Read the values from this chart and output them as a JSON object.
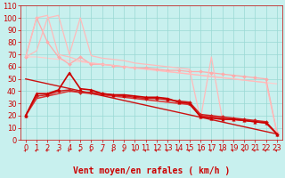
{
  "xlabel": "Vent moyen/en rafales ( km/h )",
  "xlim": [
    -0.5,
    23.5
  ],
  "ylim": [
    0,
    110
  ],
  "yticks": [
    0,
    10,
    20,
    30,
    40,
    50,
    60,
    70,
    80,
    90,
    100,
    110
  ],
  "xticks": [
    0,
    1,
    2,
    3,
    4,
    5,
    6,
    7,
    8,
    9,
    10,
    11,
    12,
    13,
    14,
    15,
    16,
    17,
    18,
    19,
    20,
    21,
    22,
    23
  ],
  "bg_color": "#c8f0ee",
  "grid_color": "#99d8d4",
  "lines": [
    {
      "x": [
        0,
        1,
        2,
        3,
        4,
        5,
        6,
        7,
        8,
        9,
        10,
        11,
        12,
        13,
        14,
        15,
        16,
        17,
        18,
        19,
        20,
        21,
        22,
        23
      ],
      "y": [
        68,
        100,
        80,
        68,
        62,
        68,
        62,
        62,
        61,
        60,
        59,
        59,
        58,
        57,
        57,
        56,
        56,
        55,
        54,
        53,
        52,
        51,
        50,
        6
      ],
      "color": "#ffaaaa",
      "lw": 0.9,
      "marker": "D",
      "ms": 2.0,
      "zorder": 2
    },
    {
      "x": [
        0,
        1,
        2,
        3,
        4,
        5,
        6,
        7,
        8,
        9,
        10,
        11,
        12,
        13,
        14,
        15,
        16,
        17,
        18,
        19,
        20,
        21,
        22,
        23
      ],
      "y": [
        68,
        100,
        102,
        70,
        68,
        65,
        63,
        62,
        61,
        60,
        59,
        58,
        57,
        56,
        55,
        54,
        53,
        52,
        51,
        50,
        49,
        48,
        47,
        6
      ],
      "color": "#ffbbbb",
      "lw": 0.9,
      "marker": null,
      "ms": 0,
      "zorder": 2
    },
    {
      "x": [
        0,
        1,
        2,
        3,
        4,
        5,
        6,
        7,
        8,
        9,
        10,
        11,
        12,
        13,
        14,
        15,
        16,
        17,
        18,
        19,
        20,
        21,
        22,
        23
      ],
      "y": [
        68,
        73,
        100,
        102,
        70,
        100,
        69,
        67,
        66,
        65,
        63,
        62,
        61,
        60,
        59,
        58,
        17,
        68,
        17,
        16,
        16,
        15,
        14,
        6
      ],
      "color": "#ffbbbb",
      "lw": 0.9,
      "marker": null,
      "ms": 0,
      "zorder": 2
    },
    {
      "x": [
        0,
        1,
        2,
        3,
        4,
        5,
        6,
        7,
        8,
        9,
        10,
        11,
        12,
        13,
        14,
        15,
        16,
        17,
        18,
        19,
        20,
        21,
        22,
        23
      ],
      "y": [
        68,
        68,
        67,
        66,
        65,
        64,
        63,
        62,
        61,
        60,
        59,
        58,
        57,
        56,
        55,
        54,
        53,
        52,
        51,
        50,
        49,
        48,
        47,
        46
      ],
      "color": "#ffcccc",
      "lw": 0.9,
      "marker": null,
      "ms": 0,
      "zorder": 1
    },
    {
      "x": [
        0,
        1,
        2,
        3,
        4,
        5,
        6,
        7,
        8,
        9,
        10,
        11,
        12,
        13,
        14,
        15,
        16,
        17,
        18,
        19,
        20,
        21,
        22,
        23
      ],
      "y": [
        20,
        38,
        38,
        41,
        55,
        42,
        41,
        38,
        37,
        37,
        36,
        35,
        35,
        34,
        31,
        30,
        19,
        18,
        17,
        17,
        16,
        15,
        14,
        5
      ],
      "color": "#cc0000",
      "lw": 1.2,
      "marker": "^",
      "ms": 2.5,
      "zorder": 5
    },
    {
      "x": [
        0,
        1,
        2,
        3,
        4,
        5,
        6,
        7,
        8,
        9,
        10,
        11,
        12,
        13,
        14,
        15,
        16,
        17,
        18,
        19,
        20,
        21,
        22,
        23
      ],
      "y": [
        20,
        36,
        37,
        40,
        41,
        39,
        39,
        38,
        37,
        36,
        35,
        34,
        34,
        33,
        32,
        31,
        21,
        20,
        19,
        18,
        17,
        16,
        15,
        5
      ],
      "color": "#cc2222",
      "lw": 1.1,
      "marker": "D",
      "ms": 2.0,
      "zorder": 4
    },
    {
      "x": [
        0,
        1,
        2,
        3,
        4,
        5,
        6,
        7,
        8,
        9,
        10,
        11,
        12,
        13,
        14,
        15,
        16,
        17,
        18,
        19,
        20,
        21,
        22,
        23
      ],
      "y": [
        20,
        34,
        36,
        38,
        40,
        39,
        38,
        37,
        36,
        35,
        34,
        33,
        32,
        31,
        30,
        29,
        20,
        19,
        18,
        17,
        16,
        15,
        14,
        5
      ],
      "color": "#dd3333",
      "lw": 1.1,
      "marker": null,
      "ms": 0,
      "zorder": 3
    },
    {
      "x": [
        0,
        23
      ],
      "y": [
        50,
        5
      ],
      "color": "#cc1111",
      "lw": 1.0,
      "marker": null,
      "ms": 0,
      "zorder": 3
    }
  ],
  "arrow_color": "#cc0000",
  "xlabel_color": "#cc0000",
  "xlabel_fontsize": 7,
  "tick_fontsize": 6,
  "tick_color": "#cc0000"
}
